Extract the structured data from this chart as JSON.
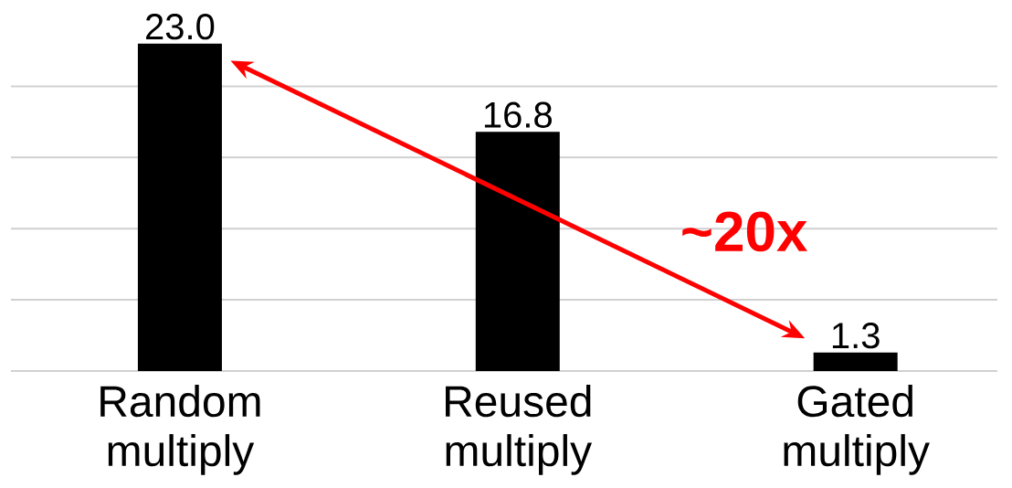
{
  "chart_data": {
    "type": "bar",
    "categories": [
      "Random multiply",
      "Reused multiply",
      "Gated multiply"
    ],
    "values": [
      23.0,
      16.8,
      1.3
    ],
    "value_labels": [
      "23.0",
      "16.8",
      "1.3"
    ],
    "color": "#000000",
    "yticks": [
      {
        "value": 0,
        "label": null
      },
      {
        "value": 5,
        "label": null
      },
      {
        "value": 10,
        "label": null
      },
      {
        "value": 15,
        "label": null
      },
      {
        "value": 20,
        "label": null
      }
    ],
    "grid": "y",
    "tick_labels": "x",
    "annotations": [
      "~20x"
    ]
  }
}
